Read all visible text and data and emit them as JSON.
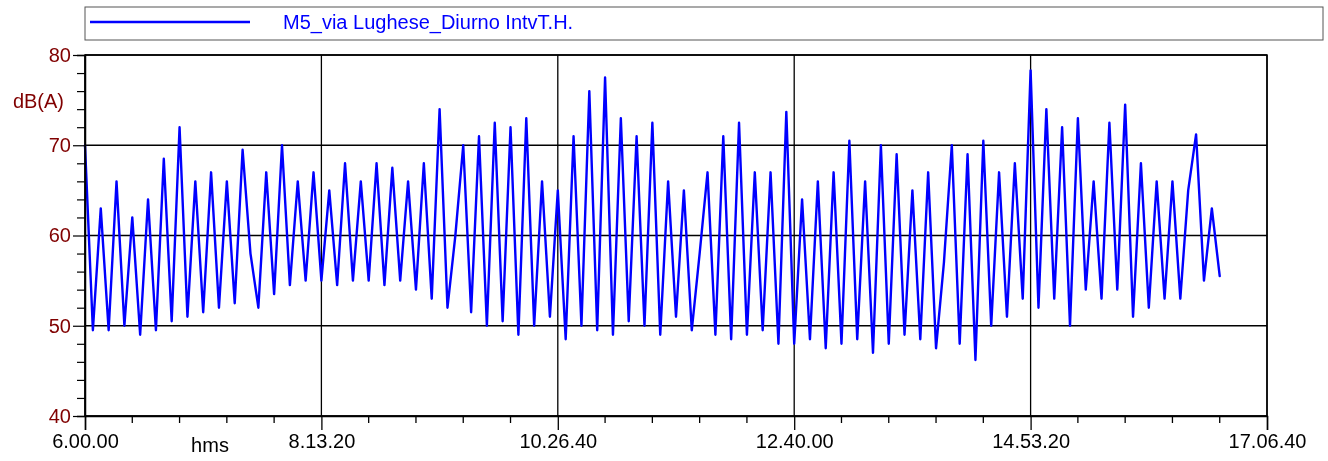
{
  "chart_data": {
    "type": "line",
    "xlabel": "hms",
    "ylabel": "dB(A)",
    "categories": [
      "6.00.00",
      null,
      null,
      null,
      null,
      null,
      null,
      null,
      null,
      null,
      null,
      null,
      null,
      null,
      null,
      null,
      null,
      null,
      null,
      null,
      null,
      null,
      null,
      null,
      null,
      null,
      null,
      null,
      null,
      null,
      "8.13.20",
      null,
      null,
      null,
      null,
      null,
      null,
      null,
      null,
      null,
      null,
      null,
      null,
      null,
      null,
      null,
      null,
      null,
      null,
      null,
      null,
      null,
      null,
      null,
      null,
      null,
      null,
      null,
      null,
      null,
      "10.26.40",
      null,
      null,
      null,
      null,
      null,
      null,
      null,
      null,
      null,
      null,
      null,
      null,
      null,
      null,
      null,
      null,
      null,
      null,
      null,
      null,
      null,
      null,
      null,
      null,
      null,
      null,
      null,
      null,
      null,
      "12.40.00",
      null,
      null,
      null,
      null,
      null,
      null,
      null,
      null,
      null,
      null,
      null,
      null,
      null,
      null,
      null,
      null,
      null,
      null,
      null,
      null,
      null,
      null,
      null,
      null,
      null,
      null,
      null,
      null,
      null,
      "14.53.20",
      null,
      null,
      null,
      null,
      null,
      null,
      null,
      null,
      null,
      null,
      null,
      null,
      null,
      null,
      null,
      null,
      null,
      null,
      null,
      null,
      null,
      null,
      null,
      null,
      null,
      null,
      null,
      null,
      null,
      "17.06.40"
    ],
    "ylim": [
      40,
      80
    ],
    "yticks": [
      40,
      {
        "value": 42,
        "label": null
      },
      {
        "value": 44,
        "label": null
      },
      {
        "value": 46,
        "label": null
      },
      {
        "value": 48,
        "label": null
      },
      50,
      {
        "value": 52,
        "label": null
      },
      {
        "value": 54,
        "label": null
      },
      {
        "value": 56,
        "label": null
      },
      {
        "value": 58,
        "label": null
      },
      60,
      {
        "value": 62,
        "label": null
      },
      {
        "value": 64,
        "label": null
      },
      {
        "value": 66,
        "label": null
      },
      {
        "value": 68,
        "label": null
      },
      70,
      {
        "value": 72,
        "label": null
      },
      {
        "value": 74,
        "label": null
      },
      {
        "value": 76,
        "label": null
      },
      {
        "value": 78,
        "label": null
      },
      80
    ],
    "grid": true,
    "legend": "top",
    "marker": "none",
    "line_style": "solid",
    "series": [
      {
        "name": "M5_via Lughese_Diurno IntvT.H.",
        "color": "#0000ff",
        "values": [
          70,
          49.5,
          63,
          49.5,
          66,
          50,
          62,
          49,
          64,
          49.5,
          68.5,
          50.5,
          72,
          51,
          66,
          51.5,
          67,
          52,
          66,
          52.5,
          69.5,
          58,
          52,
          67,
          53.5,
          70,
          54.5,
          66,
          55,
          67,
          55,
          65,
          54.5,
          68,
          55,
          66,
          55,
          68,
          54.5,
          67.5,
          55,
          66,
          54,
          68,
          53,
          74,
          52,
          60,
          70,
          51.5,
          71,
          50,
          72.5,
          50.5,
          72,
          49,
          73,
          50,
          66,
          51,
          65,
          48.5,
          71,
          50,
          76,
          49.5,
          77.5,
          49,
          73,
          50.5,
          71,
          50,
          72.5,
          49,
          66,
          51,
          65,
          49.5,
          58,
          67,
          49,
          71,
          48.5,
          72.5,
          49,
          67,
          49.5,
          67,
          48,
          73.7,
          48,
          64,
          48.5,
          66,
          47.5,
          67,
          48,
          70.5,
          48.5,
          66,
          47,
          70,
          48,
          69,
          49,
          65,
          48.5,
          67,
          47.5,
          57,
          70,
          48,
          69,
          46.2,
          70.5,
          50,
          67,
          51,
          68,
          53,
          78.3,
          52,
          74,
          53,
          72,
          50,
          73,
          54,
          66,
          53,
          72.5,
          54,
          74.5,
          51,
          68,
          52,
          66,
          53,
          66,
          53,
          65,
          71.2,
          55,
          63,
          55.5,
          null,
          null,
          null,
          null,
          null,
          null
        ]
      }
    ]
  }
}
